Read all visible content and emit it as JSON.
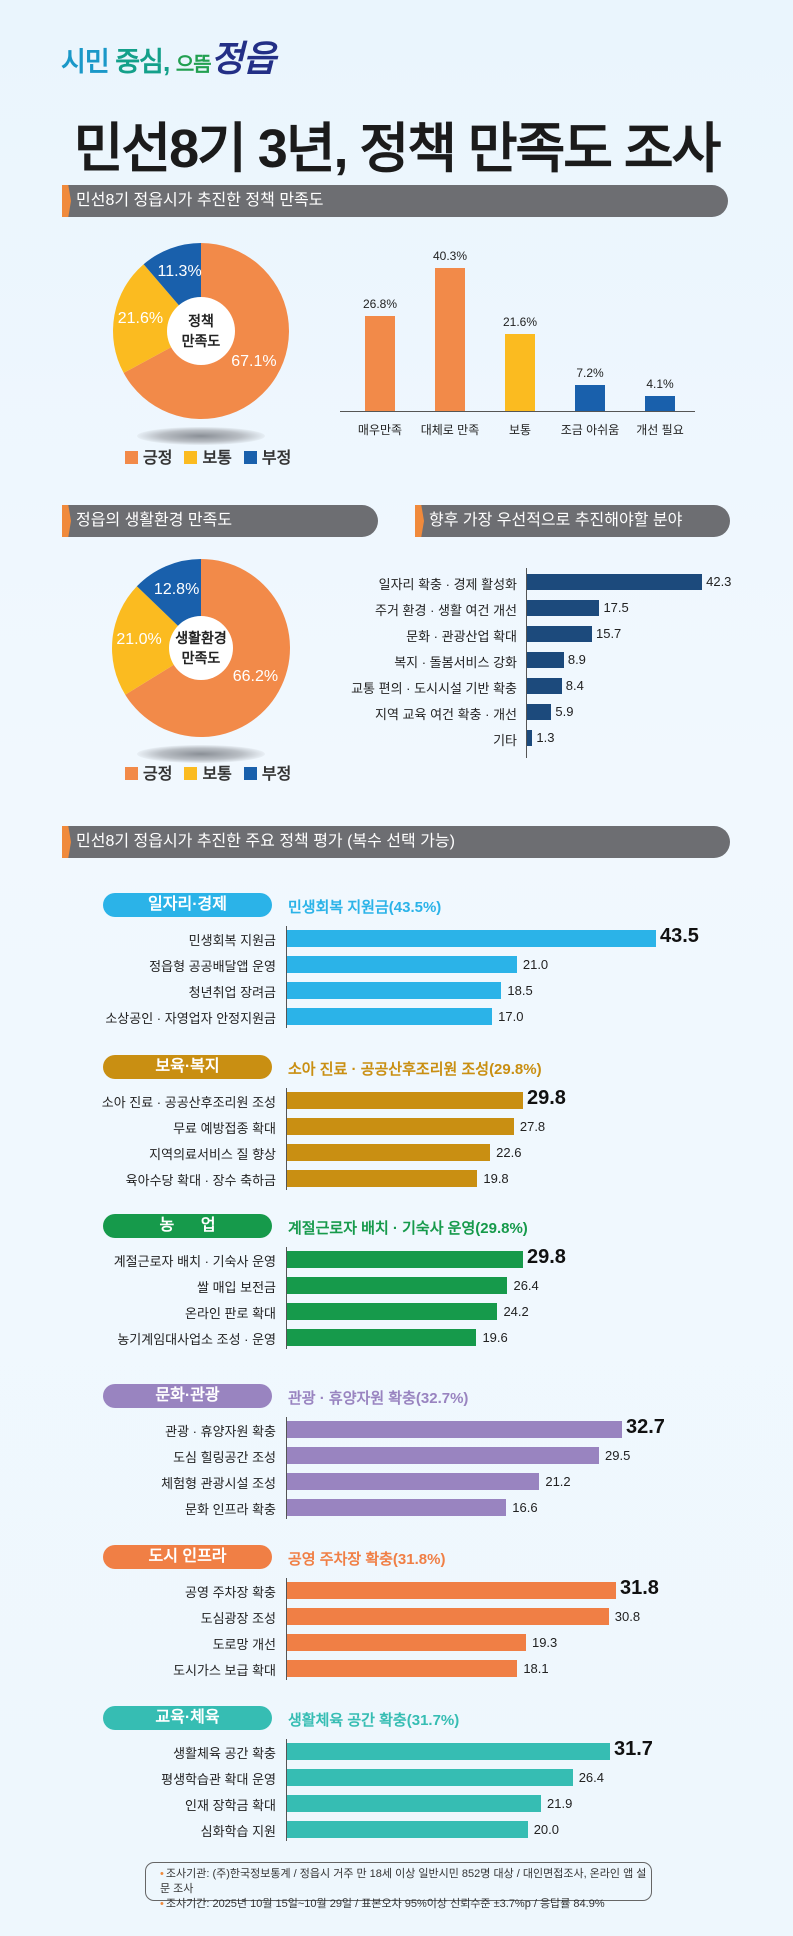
{
  "logo": {
    "part1": "시민",
    "part2": "중심,",
    "part3": "으뜸",
    "part4": "정읍"
  },
  "title": "민선8기 3년, 정책 만족도  조사",
  "colors": {
    "positive": "#f28a49",
    "neutral": "#fbbb20",
    "negative": "#1960ac",
    "navy": "#1c4a7c",
    "header": "#6d6e72",
    "tab": "#f08a3c"
  },
  "policy_satisfaction": {
    "header": "민선8기 정읍시가 추진한 정책 만족도",
    "donut": {
      "center_line1": "정책",
      "center_line2": "만족도",
      "slices": [
        {
          "label": "긍정",
          "value": 67.1,
          "display": "67.1%"
        },
        {
          "label": "보통",
          "value": 21.6,
          "display": "21.6%"
        },
        {
          "label": "부정",
          "value": 11.3,
          "display": "11.3%"
        }
      ]
    },
    "bars": [
      {
        "label": "매우만족",
        "value": 26.8,
        "display": "26.8%",
        "tone": "positive"
      },
      {
        "label": "대체로 만족",
        "value": 40.3,
        "display": "40.3%",
        "tone": "positive"
      },
      {
        "label": "보통",
        "value": 21.6,
        "display": "21.6%",
        "tone": "neutral"
      },
      {
        "label": "조금 아쉬움",
        "value": 7.2,
        "display": "7.2%",
        "tone": "negative"
      },
      {
        "label": "개선 필요",
        "value": 4.1,
        "display": "4.1%",
        "tone": "negative"
      }
    ]
  },
  "living_environment": {
    "header": "정읍의 생활환경 만족도",
    "donut": {
      "center_line1": "생활환경",
      "center_line2": "만족도",
      "slices": [
        {
          "label": "긍정",
          "value": 66.2,
          "display": "66.2%"
        },
        {
          "label": "보통",
          "value": 21.0,
          "display": "21.0%"
        },
        {
          "label": "부정",
          "value": 12.8,
          "display": "12.8%"
        }
      ]
    }
  },
  "priorities": {
    "header": "향후 가장 우선적으로 추진해야할 분야",
    "items": [
      {
        "label": "일자리 확충 · 경제 활성화",
        "value": 42.3,
        "display": "42.3"
      },
      {
        "label": "주거 환경 · 생활 여건 개선",
        "value": 17.5,
        "display": "17.5"
      },
      {
        "label": "문화 · 관광산업 확대",
        "value": 15.7,
        "display": "15.7"
      },
      {
        "label": "복지 · 돌봄서비스 강화",
        "value": 8.9,
        "display": "8.9"
      },
      {
        "label": "교통 편의 · 도시시설 기반 확충",
        "value": 8.4,
        "display": "8.4"
      },
      {
        "label": "지역 교육 여건 확충 · 개선",
        "value": 5.9,
        "display": "5.9"
      },
      {
        "label": "기타",
        "value": 1.3,
        "display": "1.3"
      }
    ]
  },
  "policy_evaluation": {
    "header": "민선8기 정읍시가 추진한 주요 정책 평가 (복수 선택 가능)",
    "groups": [
      {
        "name": "일자리·경제",
        "color": "#2bb3e8",
        "highlight": "민생회복 지원금(43.5%)",
        "items": [
          {
            "label": "민생회복 지원금",
            "value": 43.5,
            "display": "43.5"
          },
          {
            "label": "정읍형 공공배달앱 운영",
            "value": 21.0,
            "display": "21.0"
          },
          {
            "label": "청년취업 장려금",
            "value": 18.5,
            "display": "18.5"
          },
          {
            "label": "소상공인 · 자영업자 안정지원금",
            "value": 17.0,
            "display": "17.0"
          }
        ]
      },
      {
        "name": "보육·복지",
        "color": "#c98f12",
        "highlight": "소아 진료 · 공공산후조리원 조성(29.8%)",
        "items": [
          {
            "label": "소아 진료 · 공공산후조리원 조성",
            "value": 29.8,
            "display": "29.8"
          },
          {
            "label": "무료 예방접종 확대",
            "value": 27.8,
            "display": "27.8"
          },
          {
            "label": "지역의료서비스 질 향상",
            "value": 22.6,
            "display": "22.6"
          },
          {
            "label": "육아수당 확대 · 장수 축하금",
            "value": 19.8,
            "display": "19.8"
          }
        ]
      },
      {
        "name": "농      업",
        "color": "#169a4b",
        "highlight": "계절근로자 배치 · 기숙사 운영(29.8%)",
        "items": [
          {
            "label": "계절근로자 배치 · 기숙사 운영",
            "value": 29.8,
            "display": "29.8"
          },
          {
            "label": "쌀 매입 보전금",
            "value": 26.4,
            "display": "26.4"
          },
          {
            "label": "온라인 판로 확대",
            "value": 24.2,
            "display": "24.2"
          },
          {
            "label": "농기계임대사업소 조성 · 운영",
            "value": 19.6,
            "display": "19.6"
          }
        ]
      },
      {
        "name": "문화·관광",
        "color": "#9984c0",
        "highlight": "관광 · 휴양자원 확충(32.7%)",
        "items": [
          {
            "label": "관광 · 휴양자원 확충",
            "value": 32.7,
            "display": "32.7"
          },
          {
            "label": "도심 힐링공간 조성",
            "value": 29.5,
            "display": "29.5"
          },
          {
            "label": "체험형 관광시설 조성",
            "value": 21.2,
            "display": "21.2"
          },
          {
            "label": "문화 인프라 확충",
            "value": 16.6,
            "display": "16.6"
          }
        ]
      },
      {
        "name": "도시 인프라",
        "color": "#f07f45",
        "highlight": "공영 주차장 확충(31.8%)",
        "items": [
          {
            "label": "공영 주차장 확충",
            "value": 31.8,
            "display": "31.8"
          },
          {
            "label": "도심광장 조성",
            "value": 30.8,
            "display": "30.8"
          },
          {
            "label": "도로망 개선",
            "value": 19.3,
            "display": "19.3"
          },
          {
            "label": "도시가스 보급 확대",
            "value": 18.1,
            "display": "18.1"
          }
        ]
      },
      {
        "name": "교육·체육",
        "color": "#36bdb3",
        "highlight": "생활체육 공간 확충(31.7%)",
        "items": [
          {
            "label": "생활체육 공간 확충",
            "value": 31.7,
            "display": "31.7"
          },
          {
            "label": "평생학습관 확대 운영",
            "value": 26.4,
            "display": "26.4"
          },
          {
            "label": "인재 장학금 확대",
            "value": 21.9,
            "display": "21.9"
          },
          {
            "label": "심화학습 지원",
            "value": 20.0,
            "display": "20.0"
          }
        ]
      }
    ]
  },
  "footer": {
    "line1": "조사기관: (주)한국정보통계 / 정읍시 거주 만 18세 이상 일반시민 852명 대상 / 대인면접조사, 온라인 앱 설문 조사",
    "line2": "조사기간: 2025년 10월 15일~10월 29일 / 표본오차 95%이상 신뢰수준 ±3.7%p / 응답률 84.9%"
  }
}
